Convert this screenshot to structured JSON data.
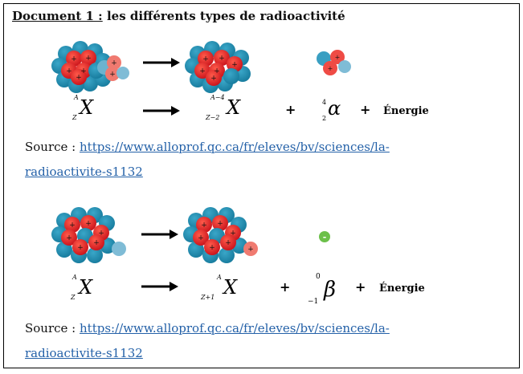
{
  "document": {
    "title_prefix": "Document 1 :",
    "title_rest": " les différents types de radioactivité"
  },
  "alpha": {
    "parent_symbol": "X",
    "parent_A": "A",
    "parent_Z": "Z",
    "daughter_symbol": "X",
    "daughter_A": "A−4",
    "daughter_Z": "Z−2",
    "particle_symbol": "α",
    "particle_A": "4",
    "particle_Z": "2",
    "plus": "+",
    "energy_label": "Énergie"
  },
  "beta": {
    "parent_symbol": "X",
    "parent_A": "A",
    "parent_Z": "Z",
    "daughter_symbol": "X",
    "daughter_A": "A",
    "daughter_Z": "Z+1",
    "particle_symbol": "β",
    "particle_A": "0",
    "particle_Z": "−1",
    "plus": "+",
    "energy_label": "Énergie",
    "electron_sign": "-"
  },
  "source1": {
    "prefix": "Source : ",
    "link_line1": "https://www.alloprof.qc.ca/fr/eleves/bv/sciences/la-",
    "link_line2": "radioactivite-s1132"
  },
  "source2": {
    "prefix": "Source : ",
    "link_line1": "https://www.alloprof.qc.ca/fr/eleves/bv/sciences/la-",
    "link_line2": "radioactivite-s1132"
  },
  "colors": {
    "proton": "#e32227",
    "neutron": "#1f8eb0",
    "proton_light": "#f07a70",
    "neutron_light": "#7fbcd6",
    "electron": "#6cc04a",
    "link": "#2461a8"
  }
}
